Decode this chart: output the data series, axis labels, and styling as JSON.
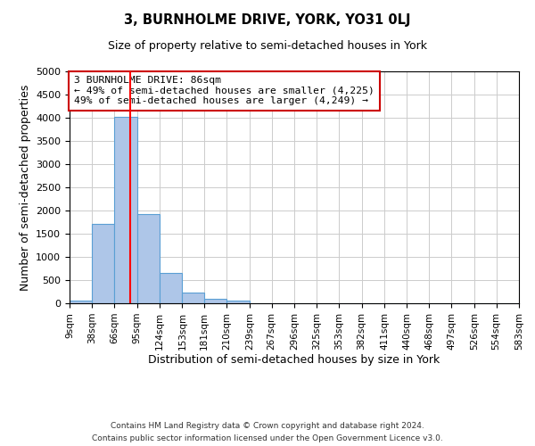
{
  "title": "3, BURNHOLME DRIVE, YORK, YO31 0LJ",
  "subtitle": "Size of property relative to semi-detached houses in York",
  "xlabel": "Distribution of semi-detached houses by size in York",
  "ylabel": "Number of semi-detached properties",
  "bar_color": "#aec6e8",
  "bar_edge_color": "#5a9fd4",
  "vline_color": "red",
  "vline_x": 86,
  "bin_edges": [
    9,
    38,
    66,
    95,
    124,
    153,
    181,
    210,
    239,
    267,
    296,
    325,
    353,
    382,
    411,
    440,
    468,
    497,
    526,
    554,
    583
  ],
  "bar_heights": [
    50,
    1720,
    4020,
    1930,
    660,
    240,
    90,
    50,
    0,
    0,
    0,
    0,
    0,
    0,
    0,
    0,
    0,
    0,
    0,
    0
  ],
  "tick_labels": [
    "9sqm",
    "38sqm",
    "66sqm",
    "95sqm",
    "124sqm",
    "153sqm",
    "181sqm",
    "210sqm",
    "239sqm",
    "267sqm",
    "296sqm",
    "325sqm",
    "353sqm",
    "382sqm",
    "411sqm",
    "440sqm",
    "468sqm",
    "497sqm",
    "526sqm",
    "554sqm",
    "583sqm"
  ],
  "ylim": [
    0,
    5000
  ],
  "yticks": [
    0,
    500,
    1000,
    1500,
    2000,
    2500,
    3000,
    3500,
    4000,
    4500,
    5000
  ],
  "annotation_title": "3 BURNHOLME DRIVE: 86sqm",
  "annotation_line1": "← 49% of semi-detached houses are smaller (4,225)",
  "annotation_line2": "49% of semi-detached houses are larger (4,249) →",
  "footer1": "Contains HM Land Registry data © Crown copyright and database right 2024.",
  "footer2": "Contains public sector information licensed under the Open Government Licence v3.0.",
  "background_color": "#ffffff",
  "grid_color": "#cccccc"
}
